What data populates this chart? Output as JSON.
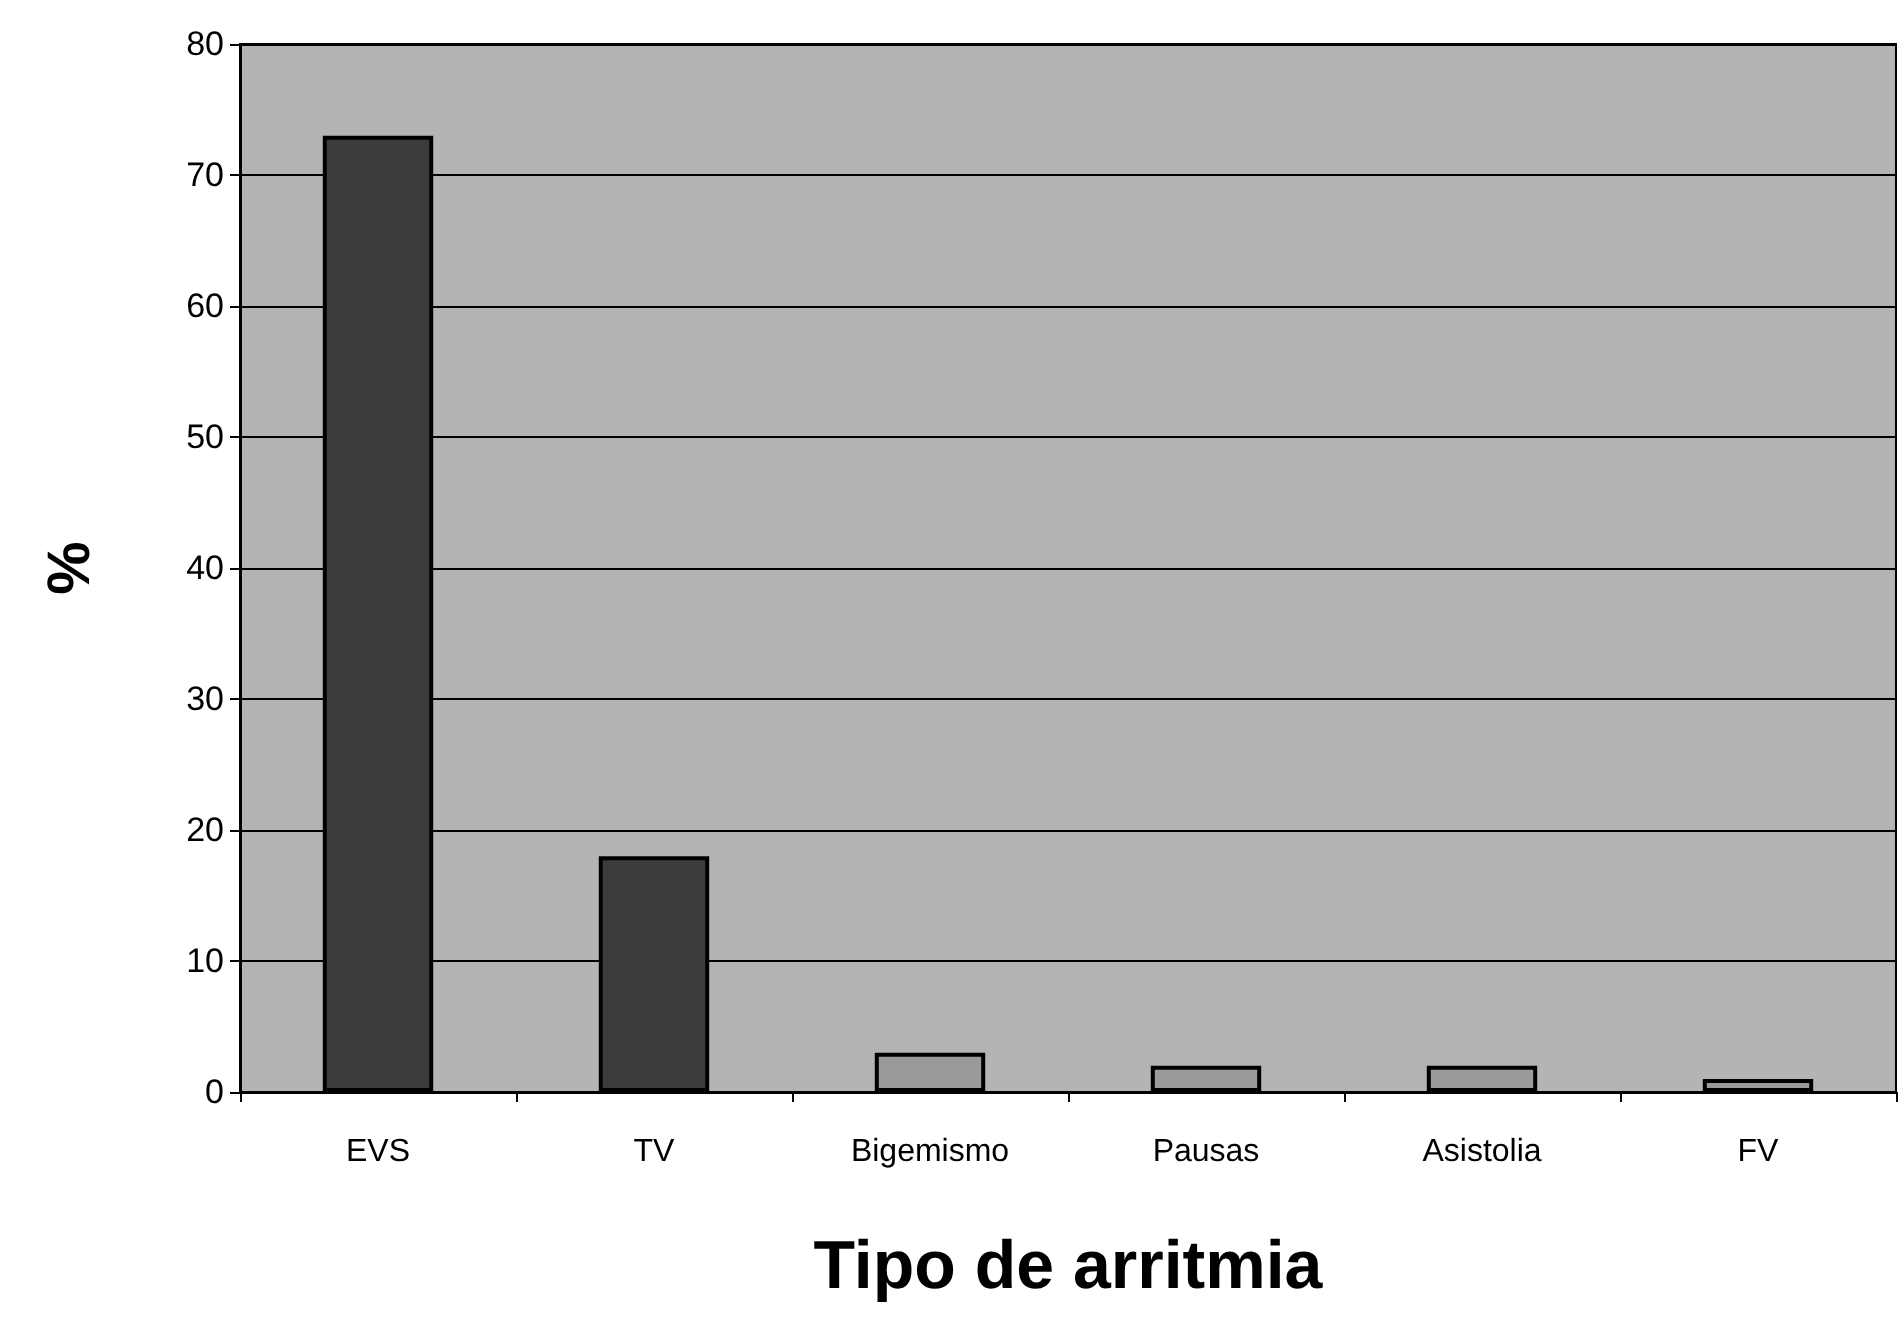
{
  "chart_data": {
    "type": "bar",
    "xlabel": "Tipo de arritmia",
    "ylabel": "%",
    "categories": [
      "EVS",
      "TV",
      "Bigemismo",
      "Pausas",
      "Asistolia",
      "FV"
    ],
    "values": [
      73,
      18,
      3,
      2,
      2,
      1
    ],
    "colors": [
      "#3c3c3c",
      "#3c3c3c",
      "#9a9a9a",
      "#9a9a9a",
      "#9a9a9a",
      "#9a9a9a"
    ],
    "ylim": [
      0,
      80
    ],
    "yticks": [
      0,
      10,
      20,
      30,
      40,
      50,
      60,
      70,
      80
    ],
    "grid": "y"
  }
}
